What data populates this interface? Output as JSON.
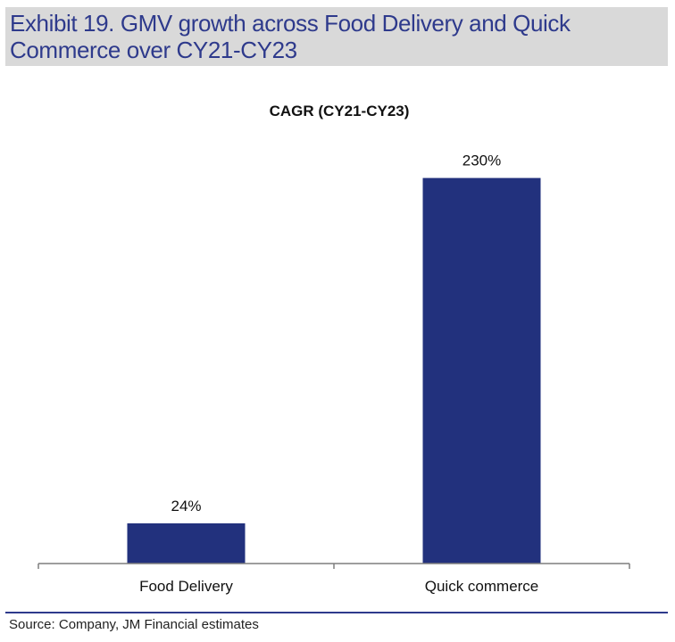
{
  "exhibit": {
    "title": "Exhibit 19. GMV growth across Food Delivery and Quick Commerce over CY21-CY23"
  },
  "chart_data": {
    "type": "bar",
    "title": "CAGR (CY21-CY23)",
    "categories": [
      "Food Delivery",
      "Quick commerce"
    ],
    "values": [
      24,
      230
    ],
    "data_labels": [
      "24%",
      "230%"
    ],
    "unit": "%",
    "xlabel": "",
    "ylabel": "",
    "ylim": [
      0,
      250
    ],
    "grid": false,
    "legend": "none",
    "bar_color": "#22317d"
  },
  "source": {
    "text": "Source: Company, JM Financial estimates"
  }
}
